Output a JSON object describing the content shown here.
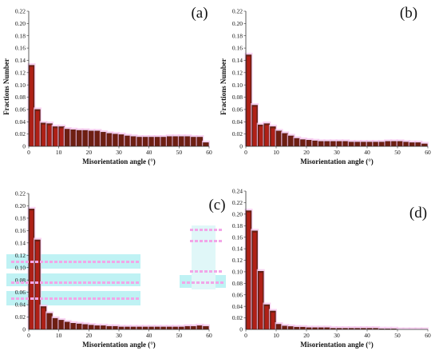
{
  "chart_data": [
    {
      "panel_label": "(a)",
      "type": "bar",
      "xlabel": "Misorientation angle (°)",
      "ylabel": "Fractions Number",
      "xlim": [
        0,
        60
      ],
      "ylim": [
        0,
        0.22
      ],
      "xticks": [
        "0",
        "10",
        "20",
        "30",
        "40",
        "50",
        "60"
      ],
      "yticks": [
        "0.02",
        "0.04",
        "0.06",
        "0.08",
        "0.10",
        "0.12",
        "0.14",
        "0.16",
        "0.18",
        "0.20",
        "0.22"
      ],
      "bin_width": 2,
      "x": [
        1,
        3,
        5,
        7,
        9,
        11,
        13,
        15,
        17,
        19,
        21,
        23,
        25,
        27,
        29,
        31,
        33,
        35,
        37,
        39,
        41,
        43,
        45,
        47,
        49,
        51,
        53,
        55,
        57,
        59
      ],
      "values": [
        0.132,
        0.06,
        0.038,
        0.037,
        0.032,
        0.032,
        0.028,
        0.027,
        0.026,
        0.026,
        0.025,
        0.025,
        0.023,
        0.021,
        0.02,
        0.019,
        0.017,
        0.016,
        0.015,
        0.015,
        0.015,
        0.015,
        0.015,
        0.016,
        0.016,
        0.016,
        0.016,
        0.015,
        0.015,
        0.006
      ]
    },
    {
      "panel_label": "(b)",
      "type": "bar",
      "xlabel": "Misorientation angle (°)",
      "ylabel": "Fractions Number",
      "xlim": [
        0,
        60
      ],
      "ylim": [
        0,
        0.22
      ],
      "xticks": [
        "0",
        "10",
        "20",
        "30",
        "40",
        "50",
        "60"
      ],
      "yticks": [
        "0.02",
        "0.04",
        "0.06",
        "0.08",
        "0.10",
        "0.12",
        "0.14",
        "0.16",
        "0.18",
        "0.20",
        "0.22"
      ],
      "bin_width": 2,
      "x": [
        1,
        3,
        5,
        7,
        9,
        11,
        13,
        15,
        17,
        19,
        21,
        23,
        25,
        27,
        29,
        31,
        33,
        35,
        37,
        39,
        41,
        43,
        45,
        47,
        49,
        51,
        53,
        55,
        57,
        59
      ],
      "values": [
        0.149,
        0.067,
        0.035,
        0.037,
        0.032,
        0.025,
        0.021,
        0.017,
        0.013,
        0.011,
        0.01,
        0.009,
        0.008,
        0.008,
        0.008,
        0.008,
        0.008,
        0.007,
        0.007,
        0.007,
        0.007,
        0.007,
        0.007,
        0.008,
        0.008,
        0.008,
        0.007,
        0.006,
        0.006,
        0.004
      ]
    },
    {
      "panel_label": "(c)",
      "type": "bar",
      "xlabel": "Misorientation angle (°)",
      "ylabel": "",
      "xlim": [
        0,
        60
      ],
      "ylim": [
        0,
        0.22
      ],
      "xticks": [
        "0",
        "10",
        "20",
        "30",
        "40",
        "50",
        "60"
      ],
      "yticks": [
        "0.02",
        "0.04",
        "0.06",
        "0.08",
        "0.10",
        "0.12",
        "0.14",
        "0.16",
        "0.18",
        "0.20",
        "0.22"
      ],
      "bin_width": 2,
      "x": [
        1,
        3,
        5,
        7,
        9,
        11,
        13,
        15,
        17,
        19,
        21,
        23,
        25,
        27,
        29,
        31,
        33,
        35,
        37,
        39,
        41,
        43,
        45,
        47,
        49,
        51,
        53,
        55,
        57,
        59
      ],
      "values": [
        0.195,
        0.145,
        0.037,
        0.026,
        0.018,
        0.015,
        0.012,
        0.01,
        0.009,
        0.008,
        0.007,
        0.006,
        0.006,
        0.005,
        0.005,
        0.004,
        0.004,
        0.004,
        0.004,
        0.004,
        0.004,
        0.004,
        0.004,
        0.004,
        0.004,
        0.004,
        0.005,
        0.005,
        0.006,
        0.005
      ]
    },
    {
      "panel_label": "(d)",
      "type": "bar",
      "xlabel": "Misorientation angle (°)",
      "ylabel": "",
      "xlim": [
        0,
        60
      ],
      "ylim": [
        0,
        0.24
      ],
      "xticks": [
        "0",
        "10",
        "20",
        "30",
        "40",
        "50",
        "60"
      ],
      "yticks": [
        "0.02",
        "0.04",
        "0.06",
        "0.08",
        "0.10",
        "0.12",
        "0.14",
        "0.16",
        "0.18",
        "0.20",
        "0.22",
        "0.24"
      ],
      "bin_width": 2,
      "x": [
        1,
        3,
        5,
        7,
        9,
        11,
        13,
        15,
        17,
        19,
        21,
        23,
        25,
        27,
        29,
        31,
        33,
        35,
        37,
        39,
        41,
        43,
        45,
        47,
        49,
        51,
        53,
        55,
        57,
        59
      ],
      "values": [
        0.206,
        0.171,
        0.101,
        0.043,
        0.032,
        0.009,
        0.006,
        0.005,
        0.004,
        0.004,
        0.003,
        0.003,
        0.003,
        0.003,
        0.002,
        0.002,
        0.002,
        0.002,
        0.002,
        0.002,
        0.002,
        0.002,
        0.001,
        0.001,
        0.001,
        0,
        0,
        0,
        0,
        0
      ]
    }
  ],
  "colors": {
    "bar_fill": "#6e1f12",
    "bar_highlight": "#e8211c",
    "bar_edge": "#3a0f08",
    "halo": "#f6c6ee",
    "cyan_artifact": "#bff2f4",
    "axis": "#333333"
  }
}
